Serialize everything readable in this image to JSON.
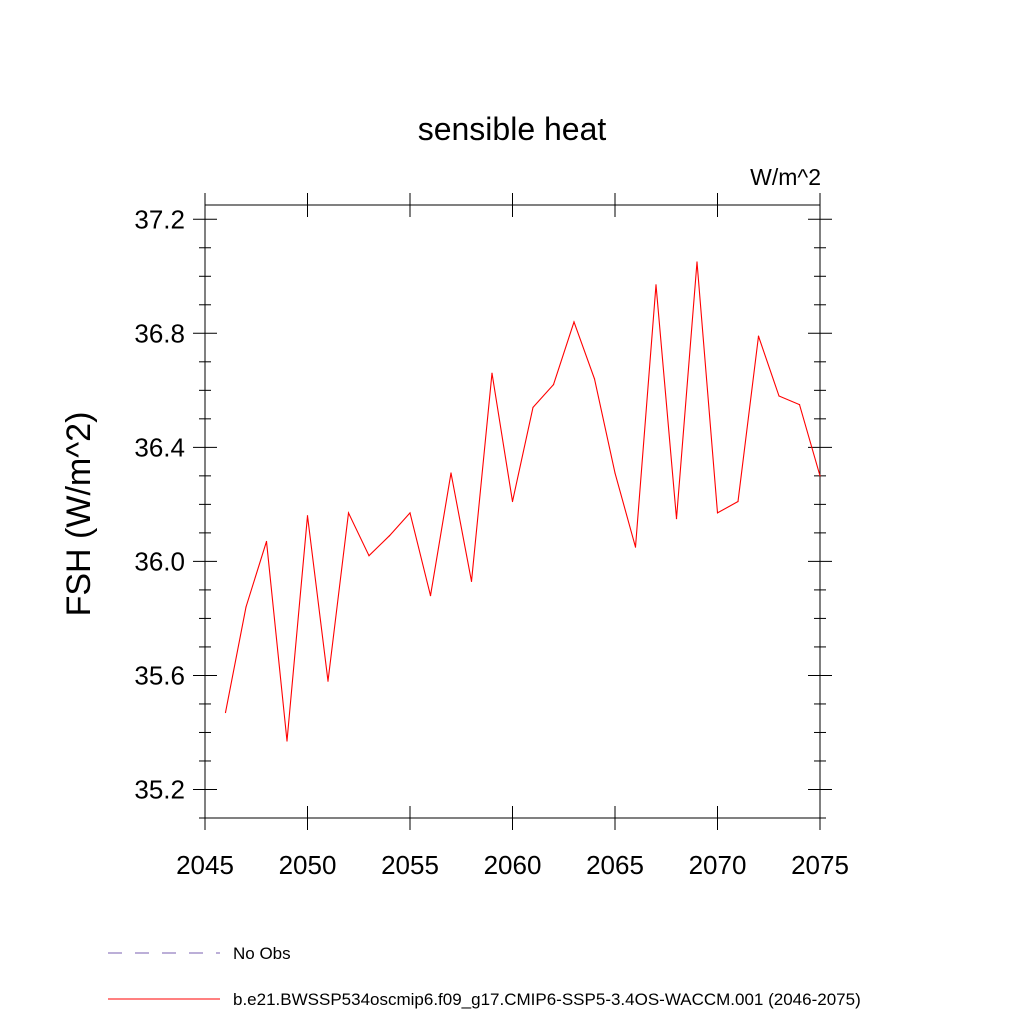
{
  "chart_data": {
    "type": "line",
    "title": "sensible heat",
    "units_label": "W/m^2",
    "xlabel": "",
    "ylabel": "FSH  (W/m^2)",
    "xlim": [
      2045,
      2075
    ],
    "ylim": [
      35.1,
      37.25
    ],
    "x_ticks": [
      2045,
      2050,
      2055,
      2060,
      2065,
      2070,
      2075
    ],
    "x_tick_labels": [
      "2045",
      "2050",
      "2055",
      "2060",
      "2065",
      "2070",
      "2075"
    ],
    "y_ticks": [
      35.2,
      35.6,
      36.0,
      36.4,
      36.8,
      37.2
    ],
    "y_tick_labels": [
      "35.2",
      "35.6",
      "36.0",
      "36.4",
      "36.8",
      "37.2"
    ],
    "series": [
      {
        "name": "b.e21.BWSSP534oscmip6.f09_g17.CMIP6-SSP5-3.4OS-WACCM.001 (2046-2075)",
        "color": "#ff0000",
        "style": "solid",
        "x": [
          2046,
          2047,
          2048,
          2049,
          2050,
          2051,
          2052,
          2053,
          2054,
          2055,
          2056,
          2057,
          2058,
          2059,
          2060,
          2061,
          2062,
          2063,
          2064,
          2065,
          2066,
          2067,
          2068,
          2069,
          2070,
          2071,
          2072,
          2073,
          2074,
          2075
        ],
        "values": [
          35.47,
          35.84,
          36.07,
          35.37,
          36.16,
          35.58,
          36.17,
          36.02,
          36.09,
          36.17,
          35.88,
          36.31,
          35.93,
          36.66,
          36.21,
          36.54,
          36.62,
          36.84,
          36.64,
          36.31,
          36.05,
          36.97,
          36.15,
          37.05,
          36.17,
          36.21,
          36.79,
          36.58,
          36.55,
          36.3
        ]
      }
    ],
    "legend": [
      {
        "label": "No Obs",
        "color": "#7a5fb0",
        "style": "dashed"
      },
      {
        "label": "b.e21.BWSSP534oscmip6.f09_g17.CMIP6-SSP5-3.4OS-WACCM.001 (2046-2075)",
        "color": "#ff0000",
        "style": "solid"
      }
    ]
  }
}
